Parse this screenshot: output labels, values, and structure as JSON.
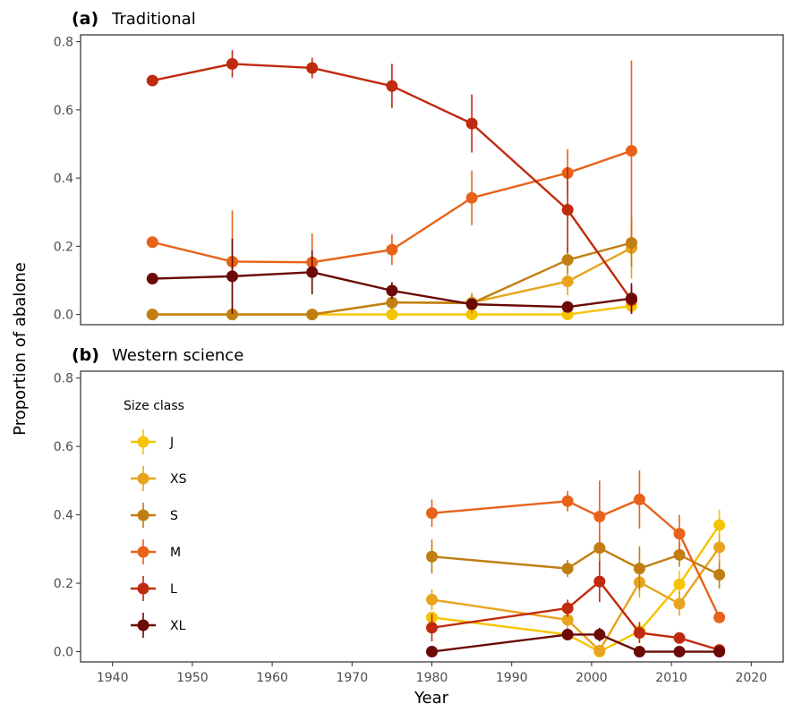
{
  "chart_data": {
    "type": "line",
    "xlabel": "Year",
    "ylabel": "Proportion of abalone",
    "xlim": [
      1936,
      2024
    ],
    "ylim": [
      -0.03,
      0.82
    ],
    "x_ticks": [
      1940,
      1950,
      1960,
      1970,
      1980,
      1990,
      2000,
      2010,
      2020
    ],
    "y_ticks": [
      0.0,
      0.2,
      0.4,
      0.6,
      0.8
    ],
    "y_tick_labels": [
      "0.0",
      "0.2",
      "0.4",
      "0.6",
      "0.8"
    ],
    "legend": {
      "title": "Size class",
      "placement": "inside-left of panel b",
      "entries": [
        {
          "label": "J",
          "color": "#F5C400"
        },
        {
          "label": "XS",
          "color": "#E8A41E"
        },
        {
          "label": "S",
          "color": "#C07F12"
        },
        {
          "label": "M",
          "color": "#E8621A"
        },
        {
          "label": "L",
          "color": "#C02A0E"
        },
        {
          "label": "XL",
          "color": "#6B0A06"
        }
      ]
    },
    "panels": [
      {
        "tag": "(a)",
        "title": "Traditional",
        "series": [
          {
            "class": "J",
            "color": "#F5C400",
            "x": [
              1945,
              1955,
              1965,
              1975,
              1985,
              1997,
              2005
            ],
            "y": [
              0.0,
              0.0,
              0.0,
              0.0,
              0.0,
              0.0,
              0.025
            ],
            "err": [
              0,
              0,
              0,
              0,
              0,
              0,
              0.015
            ]
          },
          {
            "class": "XS",
            "color": "#E8A41E",
            "x": [
              1945,
              1955,
              1965,
              1975,
              1985,
              1997,
              2005
            ],
            "y": [
              0.0,
              0.0,
              0.0,
              0.035,
              0.035,
              0.097,
              0.195
            ],
            "err": [
              0,
              0,
              0,
              0.02,
              0.02,
              0.04,
              0.09
            ]
          },
          {
            "class": "S",
            "color": "#C07F12",
            "x": [
              1945,
              1955,
              1965,
              1975,
              1985,
              1997,
              2005
            ],
            "y": [
              0.0,
              0.0,
              0.0,
              0.035,
              0.033,
              0.16,
              0.21
            ],
            "err": [
              0,
              0,
              0,
              0.02,
              0.03,
              0.04,
              0.07
            ]
          },
          {
            "class": "M",
            "color": "#E8621A",
            "x": [
              1945,
              1955,
              1965,
              1975,
              1985,
              1997,
              2005
            ],
            "y": [
              0.212,
              0.155,
              0.153,
              0.19,
              0.342,
              0.415,
              0.48
            ],
            "err": [
              0.01,
              0.15,
              0.085,
              0.045,
              0.08,
              0.07,
              0.265
            ]
          },
          {
            "class": "L",
            "color": "#C02A0E",
            "x": [
              1945,
              1955,
              1965,
              1975,
              1985,
              1997,
              2005
            ],
            "y": [
              0.686,
              0.735,
              0.723,
              0.67,
              0.56,
              0.307,
              0.042
            ],
            "err": [
              0.008,
              0.04,
              0.03,
              0.065,
              0.085,
              0.125,
              0.04
            ]
          },
          {
            "class": "XL",
            "color": "#6B0A06",
            "x": [
              1945,
              1955,
              1965,
              1975,
              1985,
              1997,
              2005
            ],
            "y": [
              0.105,
              0.112,
              0.124,
              0.07,
              0.03,
              0.022,
              0.047
            ],
            "err": [
              0.01,
              0.11,
              0.065,
              0.025,
              0.012,
              0.01,
              0.045
            ]
          }
        ]
      },
      {
        "tag": "(b)",
        "title": "Western science",
        "series": [
          {
            "class": "J",
            "color": "#F5C400",
            "x": [
              1980,
              1997,
              2001,
              2006,
              2011,
              2016
            ],
            "y": [
              0.1,
              0.05,
              0.0,
              0.06,
              0.197,
              0.37
            ],
            "err": [
              0.015,
              0.01,
              0.01,
              0.03,
              0.04,
              0.045
            ]
          },
          {
            "class": "XS",
            "color": "#E8A41E",
            "x": [
              1980,
              1997,
              2001,
              2006,
              2011,
              2016
            ],
            "y": [
              0.152,
              0.093,
              0.003,
              0.203,
              0.14,
              0.305
            ],
            "err": [
              0.03,
              0.03,
              0.015,
              0.045,
              0.035,
              0.04
            ]
          },
          {
            "class": "S",
            "color": "#C07F12",
            "x": [
              1980,
              1997,
              2001,
              2006,
              2011,
              2016
            ],
            "y": [
              0.278,
              0.243,
              0.303,
              0.243,
              0.283,
              0.225
            ],
            "err": [
              0.05,
              0.025,
              0.04,
              0.065,
              0.035,
              0.04
            ]
          },
          {
            "class": "M",
            "color": "#E8621A",
            "x": [
              1980,
              1997,
              2001,
              2006,
              2011,
              2016
            ],
            "y": [
              0.405,
              0.44,
              0.395,
              0.445,
              0.345,
              0.1
            ],
            "err": [
              0.04,
              0.03,
              0.105,
              0.085,
              0.055,
              0.015
            ]
          },
          {
            "class": "L",
            "color": "#C02A0E",
            "x": [
              1980,
              1997,
              2001,
              2006,
              2011,
              2016
            ],
            "y": [
              0.07,
              0.127,
              0.205,
              0.055,
              0.04,
              0.005
            ],
            "err": [
              0.04,
              0.025,
              0.06,
              0.03,
              0.015,
              0.005
            ]
          },
          {
            "class": "XL",
            "color": "#6B0A06",
            "x": [
              1980,
              1997,
              2001,
              2006,
              2011,
              2016
            ],
            "y": [
              0.0,
              0.05,
              0.05,
              0.0,
              0.0,
              0.0
            ],
            "err": [
              0,
              0.015,
              0.02,
              0,
              0,
              0
            ]
          }
        ]
      }
    ]
  }
}
